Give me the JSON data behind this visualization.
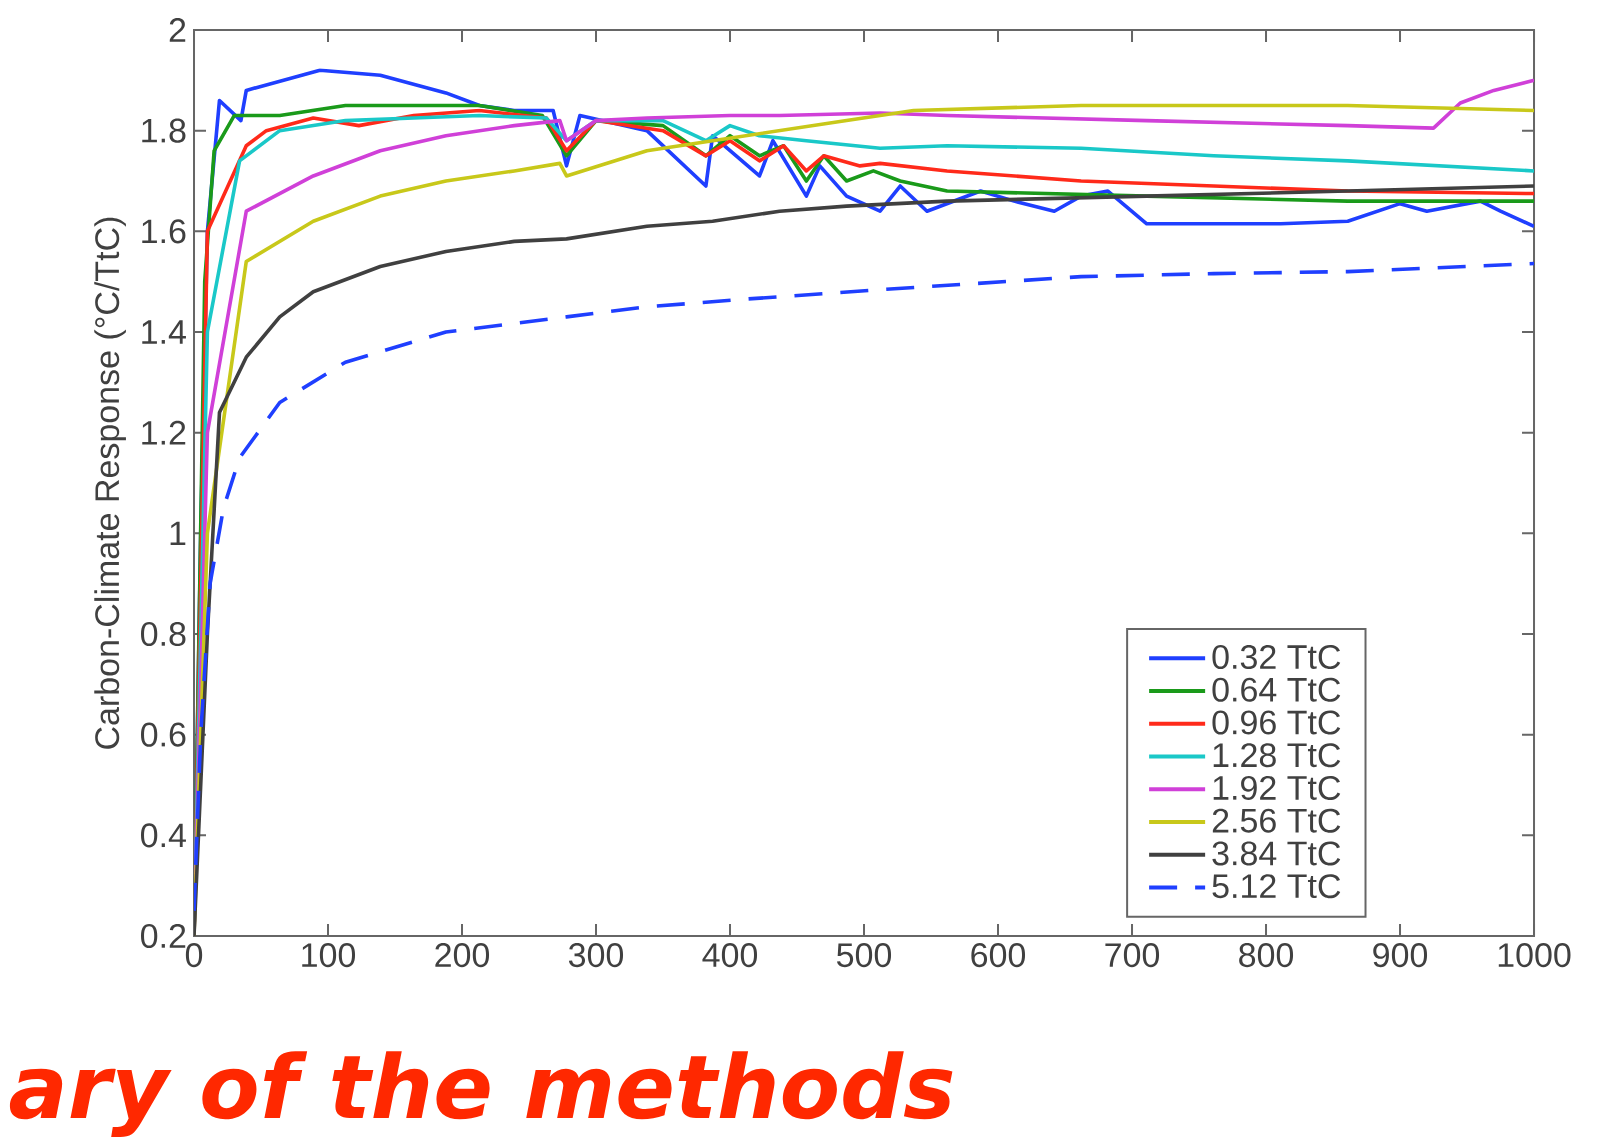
{
  "chart_data": {
    "type": "line",
    "ylabel": "Carbon-Climate Response (°C/TtC)",
    "xlim": [
      0,
      1000
    ],
    "ylim": [
      0.2,
      2
    ],
    "xticks": [
      0,
      100,
      200,
      300,
      400,
      500,
      600,
      700,
      800,
      900,
      1000
    ],
    "yticks": [
      0.2,
      0.4,
      0.6,
      0.8,
      1,
      1.2,
      1.4,
      1.6,
      1.8,
      2
    ],
    "legend": "bottom right",
    "annotations": [
      "ary of the methods"
    ],
    "series": [
      {
        "name": "0.32 TtC",
        "color": "#1f3fff",
        "x": [
          0,
          5,
          10,
          19,
          35,
          39,
          94,
          139,
          188,
          213,
          239,
          268,
          278,
          288,
          338,
          382,
          387,
          422,
          432,
          457,
          467,
          487,
          512,
          527,
          547,
          587,
          612,
          642,
          662,
          682,
          711,
          761,
          811,
          861,
          900,
          920,
          960,
          975,
          1000
        ],
        "values": [
          0.2,
          1.0,
          1.6,
          1.86,
          1.82,
          1.88,
          1.92,
          1.91,
          1.875,
          1.85,
          1.84,
          1.84,
          1.73,
          1.83,
          1.8,
          1.69,
          1.79,
          1.71,
          1.78,
          1.67,
          1.73,
          1.67,
          1.64,
          1.69,
          1.64,
          1.68,
          1.66,
          1.64,
          1.67,
          1.68,
          1.615,
          1.615,
          1.615,
          1.62,
          1.655,
          1.64,
          1.66,
          1.64,
          1.61
        ]
      },
      {
        "name": "0.64 TtC",
        "color": "#1a9a1a",
        "x": [
          0,
          8,
          15,
          30,
          64,
          113,
          164,
          213,
          260,
          278,
          300,
          350,
          382,
          400,
          422,
          440,
          457,
          470,
          487,
          507,
          527,
          562,
          711,
          861,
          1000
        ],
        "values": [
          0.2,
          1.5,
          1.76,
          1.83,
          1.83,
          1.85,
          1.85,
          1.85,
          1.83,
          1.75,
          1.82,
          1.81,
          1.75,
          1.79,
          1.75,
          1.77,
          1.7,
          1.75,
          1.7,
          1.72,
          1.7,
          1.68,
          1.67,
          1.66,
          1.66
        ]
      },
      {
        "name": "0.96 TtC",
        "color": "#ff2a1a",
        "x": [
          0,
          10,
          39,
          54,
          89,
          123,
          164,
          213,
          263,
          278,
          300,
          350,
          382,
          400,
          422,
          440,
          457,
          470,
          497,
          512,
          562,
          662,
          761,
          861,
          1000
        ],
        "values": [
          0.2,
          1.6,
          1.77,
          1.8,
          1.825,
          1.81,
          1.83,
          1.84,
          1.825,
          1.76,
          1.82,
          1.8,
          1.75,
          1.78,
          1.74,
          1.77,
          1.72,
          1.75,
          1.73,
          1.735,
          1.72,
          1.7,
          1.69,
          1.68,
          1.675
        ]
      },
      {
        "name": "1.28 TtC",
        "color": "#1ac8c8",
        "x": [
          0,
          10,
          34,
          64,
          113,
          164,
          213,
          263,
          278,
          300,
          350,
          382,
          400,
          422,
          457,
          512,
          562,
          662,
          761,
          861,
          1000
        ],
        "values": [
          0.2,
          1.4,
          1.74,
          1.8,
          1.82,
          1.825,
          1.83,
          1.825,
          1.78,
          1.82,
          1.82,
          1.78,
          1.81,
          1.79,
          1.78,
          1.765,
          1.77,
          1.765,
          1.75,
          1.74,
          1.72
        ]
      },
      {
        "name": "1.92 TtC",
        "color": "#d040d8",
        "x": [
          0,
          10,
          39,
          89,
          139,
          188,
          239,
          273,
          278,
          300,
          338,
          400,
          437,
          512,
          562,
          711,
          861,
          925,
          945,
          970,
          1000
        ],
        "values": [
          0.2,
          1.2,
          1.64,
          1.71,
          1.76,
          1.79,
          1.81,
          1.82,
          1.78,
          1.82,
          1.825,
          1.83,
          1.83,
          1.835,
          1.83,
          1.82,
          1.81,
          1.805,
          1.855,
          1.88,
          1.9
        ]
      },
      {
        "name": "2.56 TtC",
        "color": "#c8c81a",
        "x": [
          0,
          10,
          39,
          89,
          139,
          188,
          239,
          273,
          278,
          338,
          387,
          437,
          487,
          537,
          662,
          761,
          861,
          1000
        ],
        "values": [
          0.2,
          1.0,
          1.54,
          1.62,
          1.67,
          1.7,
          1.72,
          1.735,
          1.71,
          1.76,
          1.78,
          1.8,
          1.82,
          1.84,
          1.85,
          1.85,
          1.85,
          1.84
        ]
      },
      {
        "name": "3.84 TtC",
        "color": "#404040",
        "x": [
          0,
          10,
          19,
          39,
          64,
          89,
          139,
          188,
          239,
          278,
          338,
          387,
          437,
          487,
          562,
          711,
          861,
          1000
        ],
        "values": [
          0.2,
          0.8,
          1.24,
          1.35,
          1.43,
          1.48,
          1.53,
          1.56,
          1.58,
          1.585,
          1.61,
          1.62,
          1.64,
          1.65,
          1.66,
          1.67,
          1.68,
          1.69
        ]
      },
      {
        "name": "5.12 TtC",
        "color": "#1f3fff",
        "line_style": "dashed",
        "x": [
          0,
          5,
          12,
          22,
          34,
          64,
          113,
          188,
          278,
          338,
          410,
          512,
          662,
          761,
          861,
          1000
        ],
        "values": [
          0.25,
          0.6,
          0.9,
          1.05,
          1.15,
          1.26,
          1.34,
          1.4,
          1.43,
          1.45,
          1.465,
          1.484,
          1.51,
          1.516,
          1.52,
          1.536
        ]
      }
    ]
  }
}
